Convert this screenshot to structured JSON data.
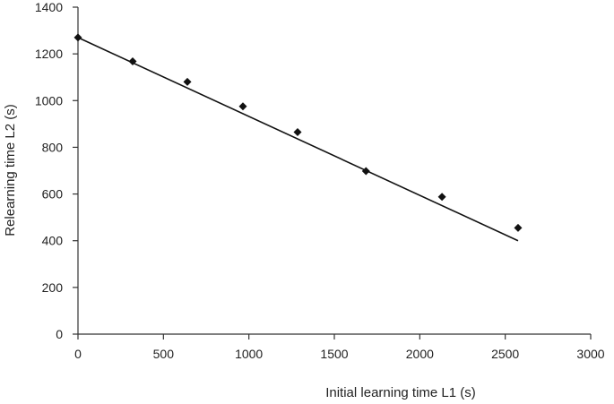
{
  "chart_data": {
    "type": "scatter",
    "title": "",
    "xlabel": "Initial learning time L1 (s)",
    "ylabel": "Relearning time L2 (s)",
    "xlim": [
      0,
      3000
    ],
    "ylim": [
      0,
      1400
    ],
    "xticks": [
      0,
      500,
      1000,
      1500,
      2000,
      2500,
      3000
    ],
    "yticks": [
      0,
      200,
      400,
      600,
      800,
      1000,
      1200,
      1400
    ],
    "xtick_labels": [
      "0",
      "500",
      "1000",
      "1500",
      "2000",
      "2500",
      "3000"
    ],
    "ytick_labels": [
      "0",
      "200",
      "400",
      "600",
      "800",
      "1000",
      "1200",
      "1400"
    ],
    "series": [
      {
        "marker": "diamond",
        "color": "#111111",
        "x": [
          0,
          320,
          640,
          965,
          1285,
          1685,
          2130,
          2575
        ],
        "y": [
          1270,
          1168,
          1080,
          975,
          865,
          698,
          588,
          455
        ]
      }
    ],
    "trendline": {
      "type": "linear",
      "color": "#111111",
      "x": [
        0,
        2575
      ],
      "y": [
        1270,
        400
      ]
    },
    "grid": false,
    "legend": "none"
  }
}
